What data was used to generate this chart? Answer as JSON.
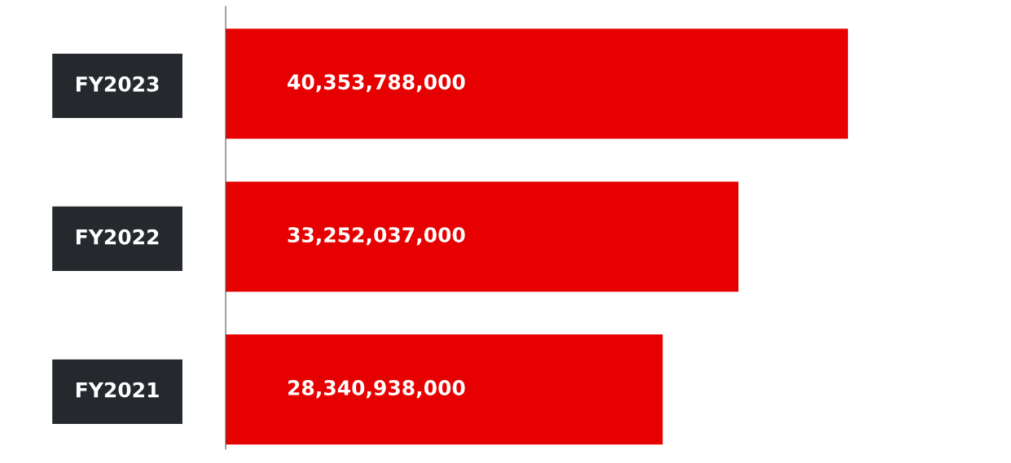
{
  "chart_data": {
    "type": "bar",
    "orientation": "horizontal",
    "categories": [
      "FY2023",
      "FY2022",
      "FY2021"
    ],
    "values": [
      40353788000,
      33252037000,
      28340938000
    ],
    "color": "#e60000",
    "value_labels": [
      "40,353,788,000",
      "33,252,037,000",
      "28,340,938,000"
    ],
    "grid": false,
    "legend": false
  }
}
